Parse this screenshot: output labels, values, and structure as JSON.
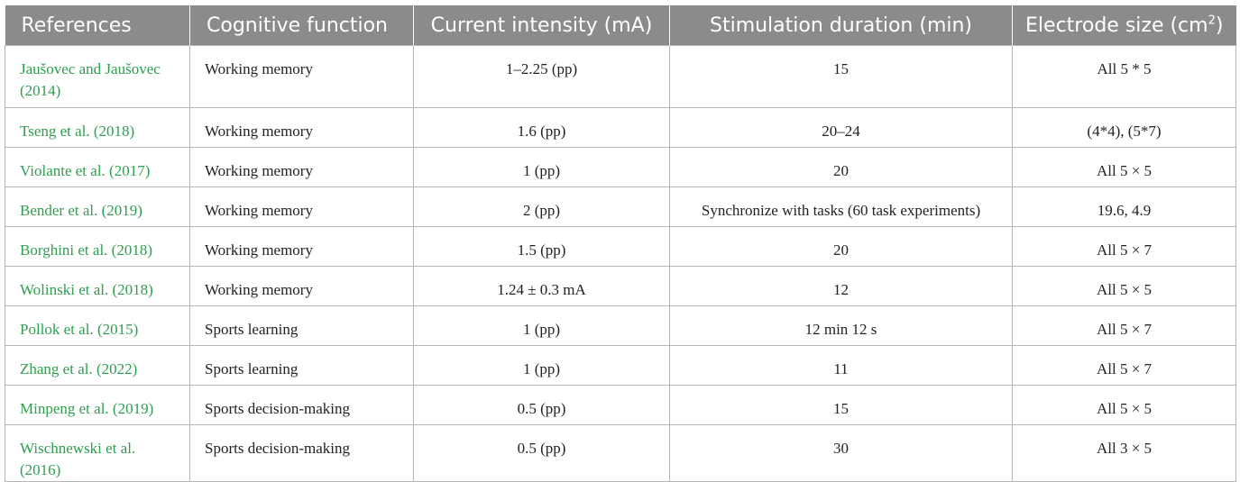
{
  "table": {
    "headers": {
      "references": "References",
      "cognitive_function": "Cognitive function",
      "current_intensity": "Current intensity (mA)",
      "stimulation_duration": "Stimulation duration (min)",
      "electrode_size_prefix": "Electrode size (cm",
      "electrode_size_sup": "2",
      "electrode_size_suffix": ")"
    },
    "rows": [
      {
        "reference": "Jaušovec and Jaušovec (2014)",
        "function": "Working memory",
        "intensity": "1–2.25 (pp)",
        "duration": "15",
        "electrode": "All 5 * 5"
      },
      {
        "reference": "Tseng et al. (2018)",
        "function": "Working memory",
        "intensity": "1.6 (pp)",
        "duration": "20–24",
        "electrode": "(4*4), (5*7)"
      },
      {
        "reference": "Violante et al. (2017)",
        "function": "Working memory",
        "intensity": "1 (pp)",
        "duration": "20",
        "electrode": "All 5 × 5"
      },
      {
        "reference": "Bender et al. (2019)",
        "function": "Working memory",
        "intensity": "2 (pp)",
        "duration": "Synchronize with tasks (60 task experiments)",
        "electrode": "19.6, 4.9"
      },
      {
        "reference": "Borghini et al. (2018)",
        "function": "Working memory",
        "intensity": "1.5 (pp)",
        "duration": "20",
        "electrode": "All 5 × 7"
      },
      {
        "reference": "Wolinski et al. (2018)",
        "function": "Working memory",
        "intensity": "1.24 ± 0.3 mA",
        "duration": "12",
        "electrode": "All 5 × 5"
      },
      {
        "reference": "Pollok et al. (2015)",
        "function": "Sports learning",
        "intensity": "1 (pp)",
        "duration": "12 min 12 s",
        "electrode": "All 5 × 7"
      },
      {
        "reference": "Zhang et al. (2022)",
        "function": "Sports learning",
        "intensity": "1 (pp)",
        "duration": "11",
        "electrode": "All 5 × 7"
      },
      {
        "reference": "Minpeng et al. (2019)",
        "function": "Sports decision-making",
        "intensity": "0.5 (pp)",
        "duration": "15",
        "electrode": "All 5 × 5"
      },
      {
        "reference": "Wischnewski et al. (2016)",
        "function": "Sports decision-making",
        "intensity": "0.5 (pp)",
        "duration": "30",
        "electrode": "All 3 × 5"
      }
    ]
  }
}
